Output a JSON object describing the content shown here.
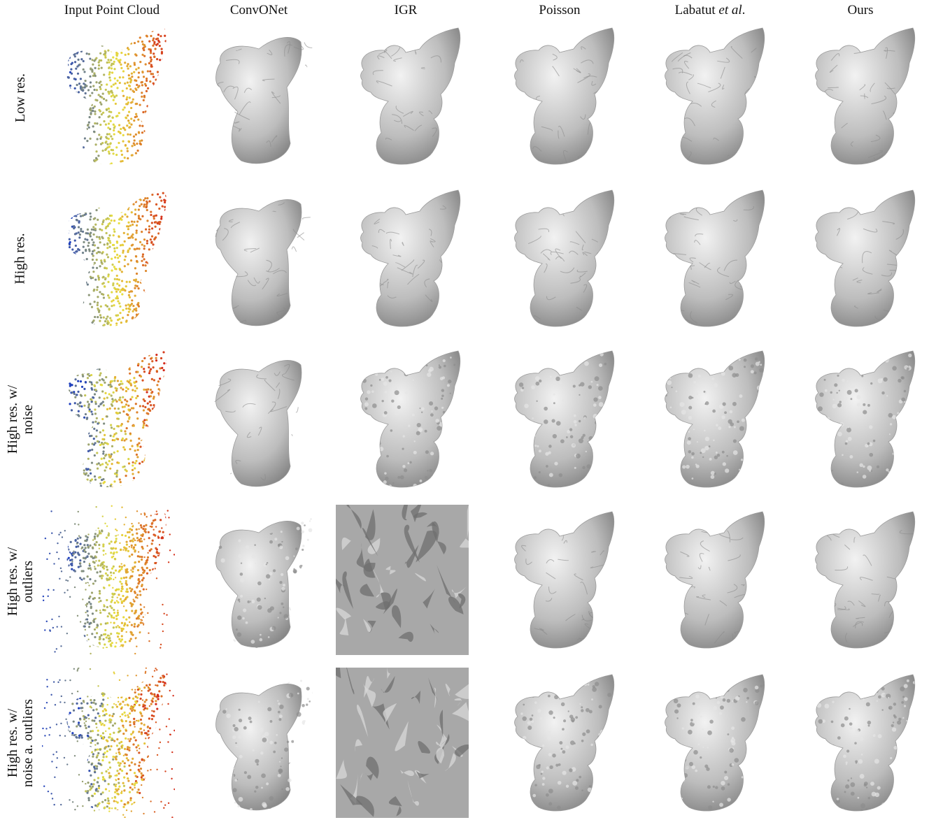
{
  "columns": [
    {
      "label": "Input Point Cloud"
    },
    {
      "label": "ConvONet"
    },
    {
      "label": "IGR"
    },
    {
      "label": "Poisson"
    },
    {
      "label_prefix": "Labatut ",
      "label_italic": "et al",
      "label_suffix": "."
    },
    {
      "label": "Ours"
    }
  ],
  "rows": [
    {
      "lines": [
        "Low res."
      ]
    },
    {
      "lines": [
        "High res."
      ]
    },
    {
      "lines": [
        "High res. w/",
        "noise"
      ]
    },
    {
      "lines": [
        "High res. w/",
        "outliers"
      ]
    },
    {
      "lines": [
        "High res. w/",
        "noise a. outliers"
      ]
    }
  ],
  "colors": {
    "mesh": "#bdbdbd",
    "mesh_dark": "#7a7a7a",
    "pc_low": "#1e3fbf",
    "pc_mid": "#e8e040",
    "pc_high": "#d42a1a"
  }
}
